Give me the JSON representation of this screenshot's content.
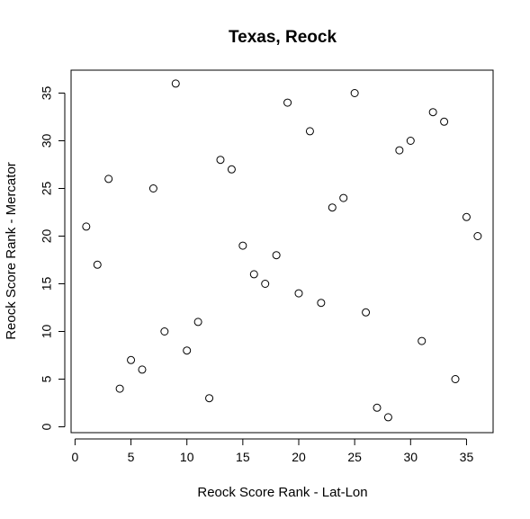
{
  "chart_data": {
    "type": "scatter",
    "title": "Texas, Reock",
    "xlabel": "Reock Score Rank - Lat-Lon",
    "ylabel": "Reock Score Rank - Mercator",
    "xlim": [
      0,
      36
    ],
    "ylim": [
      0,
      36
    ],
    "x_ticks": [
      0,
      5,
      10,
      15,
      20,
      25,
      30,
      35
    ],
    "y_ticks": [
      0,
      5,
      10,
      15,
      20,
      25,
      30,
      35
    ],
    "grid": false,
    "marker": "open-circle",
    "points": [
      {
        "x": 1,
        "y": 21
      },
      {
        "x": 2,
        "y": 17
      },
      {
        "x": 3,
        "y": 26
      },
      {
        "x": 4,
        "y": 4
      },
      {
        "x": 5,
        "y": 7
      },
      {
        "x": 6,
        "y": 6
      },
      {
        "x": 7,
        "y": 25
      },
      {
        "x": 8,
        "y": 10
      },
      {
        "x": 9,
        "y": 36
      },
      {
        "x": 10,
        "y": 8
      },
      {
        "x": 11,
        "y": 11
      },
      {
        "x": 12,
        "y": 3
      },
      {
        "x": 13,
        "y": 28
      },
      {
        "x": 14,
        "y": 27
      },
      {
        "x": 15,
        "y": 19
      },
      {
        "x": 16,
        "y": 16
      },
      {
        "x": 17,
        "y": 15
      },
      {
        "x": 18,
        "y": 18
      },
      {
        "x": 19,
        "y": 34
      },
      {
        "x": 20,
        "y": 14
      },
      {
        "x": 21,
        "y": 31
      },
      {
        "x": 22,
        "y": 13
      },
      {
        "x": 23,
        "y": 23
      },
      {
        "x": 24,
        "y": 24
      },
      {
        "x": 25,
        "y": 35
      },
      {
        "x": 26,
        "y": 12
      },
      {
        "x": 27,
        "y": 2
      },
      {
        "x": 28,
        "y": 1
      },
      {
        "x": 29,
        "y": 29
      },
      {
        "x": 30,
        "y": 30
      },
      {
        "x": 31,
        "y": 9
      },
      {
        "x": 32,
        "y": 33
      },
      {
        "x": 33,
        "y": 32
      },
      {
        "x": 34,
        "y": 5
      },
      {
        "x": 35,
        "y": 22
      },
      {
        "x": 36,
        "y": 20
      }
    ]
  }
}
